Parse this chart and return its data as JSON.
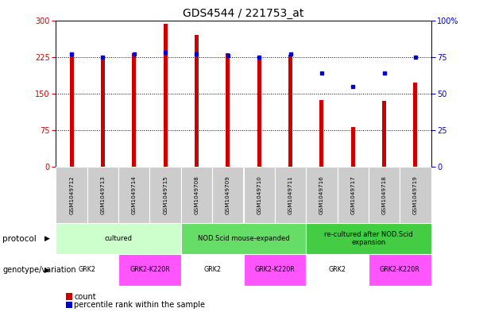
{
  "title": "GDS4544 / 221753_at",
  "samples": [
    "GSM1049712",
    "GSM1049713",
    "GSM1049714",
    "GSM1049715",
    "GSM1049708",
    "GSM1049709",
    "GSM1049710",
    "GSM1049711",
    "GSM1049716",
    "GSM1049717",
    "GSM1049718",
    "GSM1049719"
  ],
  "counts": [
    228,
    220,
    233,
    292,
    270,
    233,
    220,
    229,
    137,
    82,
    136,
    172
  ],
  "percentile_ranks": [
    77,
    75,
    77,
    78,
    77,
    76,
    75,
    77,
    64,
    55,
    64,
    75
  ],
  "left_ylim": [
    0,
    300
  ],
  "right_ylim": [
    0,
    100
  ],
  "left_yticks": [
    0,
    75,
    150,
    225,
    300
  ],
  "right_yticks": [
    0,
    25,
    50,
    75,
    100
  ],
  "right_yticklabels": [
    "0",
    "25",
    "50",
    "75",
    "100%"
  ],
  "bar_color": "#cc0000",
  "dot_color": "#0000cc",
  "bar_width": 0.12,
  "protocol_row": {
    "label": "protocol",
    "groups": [
      {
        "label": "cultured",
        "start": 0,
        "end": 4,
        "color": "#ccffcc"
      },
      {
        "label": "NOD.Scid mouse-expanded",
        "start": 4,
        "end": 8,
        "color": "#66dd66"
      },
      {
        "label": "re-cultured after NOD.Scid\nexpansion",
        "start": 8,
        "end": 12,
        "color": "#44cc44"
      }
    ]
  },
  "genotype_row": {
    "label": "genotype/variation",
    "groups": [
      {
        "label": "GRK2",
        "start": 0,
        "end": 2,
        "color": "#ffffff"
      },
      {
        "label": "GRK2-K220R",
        "start": 2,
        "end": 4,
        "color": "#ff55ff"
      },
      {
        "label": "GRK2",
        "start": 4,
        "end": 6,
        "color": "#ffffff"
      },
      {
        "label": "GRK2-K220R",
        "start": 6,
        "end": 8,
        "color": "#ff55ff"
      },
      {
        "label": "GRK2",
        "start": 8,
        "end": 10,
        "color": "#ffffff"
      },
      {
        "label": "GRK2-K220R",
        "start": 10,
        "end": 12,
        "color": "#ff55ff"
      }
    ]
  },
  "legend_count_color": "#cc0000",
  "legend_pct_color": "#0000cc",
  "sample_bg_color": "#cccccc",
  "title_fontsize": 10,
  "tick_fontsize": 7,
  "label_fontsize": 7.5,
  "dotted_lines": [
    75,
    150,
    225
  ]
}
